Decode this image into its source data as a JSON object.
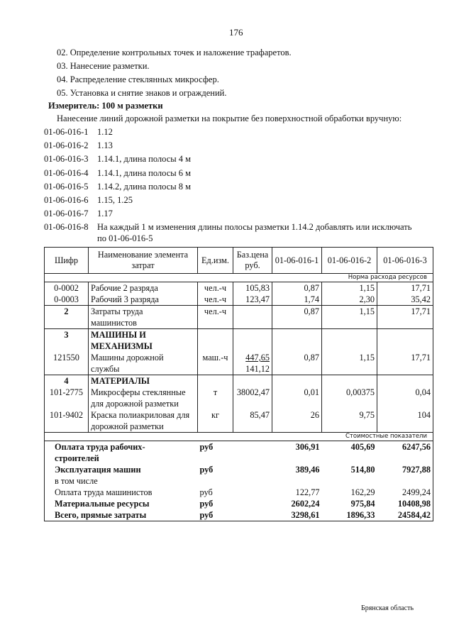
{
  "page_number": "176",
  "steps": [
    "02. Определение контрольных точек и наложение трафаретов.",
    "03. Нанесение разметки.",
    "04. Распределение стеклянных микросфер.",
    "05. Установка и снятие знаков и ограждений."
  ],
  "meter": "Измеритель: 100 м разметки",
  "intro": "Нанесение линий дорожной разметки на покрытие без поверхностной обработки вручную:",
  "codes": [
    {
      "code": "01-06-016-1",
      "text": "1.12"
    },
    {
      "code": "01-06-016-2",
      "text": "1.13"
    },
    {
      "code": "01-06-016-3",
      "text": "1.14.1, длина полосы 4 м"
    },
    {
      "code": "01-06-016-4",
      "text": "1.14.1, длина полосы 6 м"
    },
    {
      "code": "01-06-016-5",
      "text": "1.14.2, длина полосы 8 м"
    },
    {
      "code": "01-06-016-6",
      "text": "1.15, 1.25"
    },
    {
      "code": "01-06-016-7",
      "text": "1.17"
    },
    {
      "code": "01-06-016-8",
      "text": "На каждый 1 м изменения длины полосы разметки 1.14.2  добавлять или исключать",
      "text2": "по 01-06-016-5"
    }
  ],
  "table": {
    "headers": [
      "Шифр",
      "Наименование элемента\nзатрат",
      "Ед.изм.",
      "Баз.цена\nруб.",
      "01-06-016-1",
      "01-06-016-2",
      "01-06-016-3"
    ],
    "section1": "Норма расхода ресурсов",
    "rows": [
      {
        "code": "0-0002",
        "name": "Рабочие 2 разряда",
        "unit": "чел.-ч",
        "price": "105,83",
        "v": [
          "0,87",
          "1,15",
          "17,71"
        ],
        "bt": true
      },
      {
        "code": "0-0003",
        "name": "Рабочий 3 разряда",
        "unit": "чел.-ч",
        "price": "123,47",
        "v": [
          "1,74",
          "2,30",
          "35,42"
        ]
      },
      {
        "code": "2",
        "name": "Затраты труда\nмашинистов",
        "unit": "чел.-ч",
        "price": "",
        "v": [
          "0,87",
          "1,15",
          "17,71"
        ],
        "bt": true,
        "boldcode": true
      },
      {
        "code": "3",
        "name": "МАШИНЫ И\nМЕХАНИЗМЫ",
        "unit": "",
        "price": "",
        "v": [
          "",
          "",
          ""
        ],
        "bt": true,
        "boldcode": true,
        "boldname": true
      },
      {
        "code": "121550",
        "name": "Машины дорожной\nслужбы",
        "unit": "маш.-ч",
        "price": "447,65",
        "price2": "141,12",
        "v": [
          "0,87",
          "1,15",
          "17,71"
        ]
      },
      {
        "code": "4",
        "name": "МАТЕРИАЛЫ",
        "unit": "",
        "price": "",
        "v": [
          "",
          "",
          ""
        ],
        "bt": true,
        "boldcode": true,
        "boldname": true
      },
      {
        "code": "101-2775",
        "name": "Микросферы стеклянные\nдля дорожной разметки",
        "unit": "т",
        "price": "38002,47",
        "v": [
          "0,01",
          "0,00375",
          "0,04"
        ]
      },
      {
        "code": "101-9402",
        "name": "Краска полиакриловая для\nдорожной разметки",
        "unit": "кг",
        "price": "85,47",
        "v": [
          "26",
          "9,75",
          "104"
        ]
      }
    ],
    "section2": "Стоимостные показатели",
    "summary": [
      {
        "name": "Оплата труда рабочих-\nстроителей",
        "unit": "руб",
        "v": [
          "306,91",
          "405,69",
          "6247,56"
        ],
        "bold": true
      },
      {
        "name": "Эксплуатация машин",
        "unit": "руб",
        "v": [
          "389,46",
          "514,80",
          "7927,88"
        ],
        "bold": true
      },
      {
        "name": "в том числе",
        "unit": "",
        "v": [
          "",
          "",
          ""
        ]
      },
      {
        "name": "Оплата труда машинистов",
        "unit": "руб",
        "v": [
          "122,77",
          "162,29",
          "2499,24"
        ]
      },
      {
        "name": "Материальные ресурсы",
        "unit": "руб",
        "v": [
          "2602,24",
          "975,84",
          "10408,98"
        ],
        "bold": true
      },
      {
        "name": "Всего, прямые затраты",
        "unit": "руб",
        "v": [
          "3298,61",
          "1896,33",
          "24584,42"
        ],
        "bold": true
      }
    ]
  },
  "footer": "Брянская область"
}
